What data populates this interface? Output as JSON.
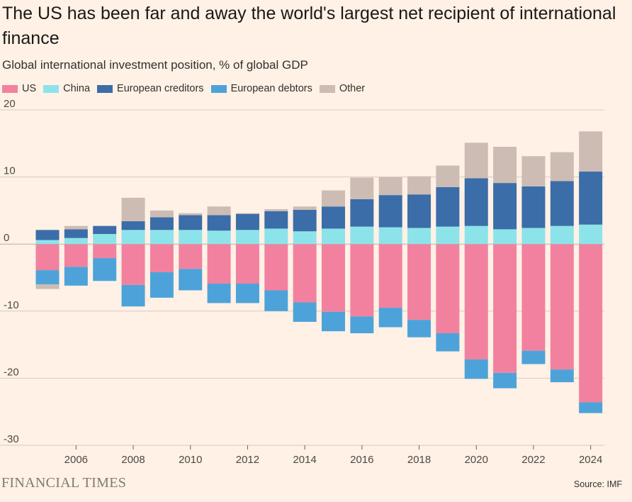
{
  "title": "The US has been far and away the world's largest net recipient of international finance",
  "subtitle": "Global international investment position, % of global GDP",
  "brand": "FINANCIAL TIMES",
  "source": "Source: IMF",
  "colors": {
    "us": "#F2819F",
    "china": "#8DE3EA",
    "european_creditors": "#3B6DA8",
    "european_debtors": "#4DA3D9",
    "other": "#CDBCB4",
    "grid": "#D5CBC3",
    "background": "#FFF1E5"
  },
  "legend": [
    {
      "key": "us",
      "label": "US"
    },
    {
      "key": "china",
      "label": "China"
    },
    {
      "key": "european_creditors",
      "label": "European creditors"
    },
    {
      "key": "european_debtors",
      "label": "European debtors"
    },
    {
      "key": "other",
      "label": "Other"
    }
  ],
  "chart_data": {
    "type": "bar",
    "stacked": true,
    "x": [
      2005,
      2006,
      2007,
      2008,
      2009,
      2010,
      2011,
      2012,
      2013,
      2014,
      2015,
      2016,
      2017,
      2018,
      2019,
      2020,
      2021,
      2022,
      2023,
      2024
    ],
    "x_tick_labels": [
      "2006",
      "2008",
      "2010",
      "2012",
      "2014",
      "2016",
      "2018",
      "2020",
      "2022",
      "2024"
    ],
    "ylim": [
      -30,
      20
    ],
    "y_ticks": [
      20,
      10,
      0,
      -10,
      -20,
      -30
    ],
    "grid": true,
    "series": [
      {
        "name": "US",
        "key": "us",
        "values": [
          -3.9,
          -3.4,
          -2.1,
          -6.1,
          -4.2,
          -3.7,
          -5.9,
          -5.9,
          -6.9,
          -8.7,
          -10.1,
          -10.8,
          -9.5,
          -11.3,
          -13.3,
          -17.2,
          -19.2,
          -15.9,
          -18.7,
          -23.6
        ]
      },
      {
        "name": "China",
        "key": "china",
        "values": [
          0.6,
          0.9,
          1.5,
          2.1,
          2.1,
          2.1,
          2.0,
          2.1,
          2.3,
          1.9,
          2.3,
          2.6,
          2.5,
          2.4,
          2.6,
          2.7,
          2.2,
          2.4,
          2.7,
          2.9
        ]
      },
      {
        "name": "European creditors",
        "key": "european_creditors",
        "values": [
          1.5,
          1.3,
          1.2,
          1.3,
          1.9,
          2.2,
          2.3,
          2.4,
          2.6,
          3.2,
          3.3,
          4.1,
          4.8,
          5.0,
          5.9,
          7.1,
          6.9,
          6.2,
          6.7,
          7.9
        ]
      },
      {
        "name": "European debtors",
        "key": "european_debtors",
        "values": [
          -2.1,
          -2.8,
          -3.4,
          -3.2,
          -3.8,
          -3.2,
          -2.9,
          -2.9,
          -3.1,
          -2.9,
          -2.9,
          -2.5,
          -2.9,
          -2.6,
          -2.7,
          -2.9,
          -2.3,
          -2.0,
          -1.9,
          -1.6
        ]
      },
      {
        "name": "Other",
        "key": "other",
        "values": [
          -0.7,
          0.5,
          0.0,
          3.5,
          1.0,
          0.3,
          1.3,
          0.1,
          0.3,
          0.5,
          2.4,
          3.2,
          2.7,
          2.7,
          3.2,
          5.3,
          5.4,
          4.5,
          4.3,
          6.0
        ]
      }
    ]
  }
}
